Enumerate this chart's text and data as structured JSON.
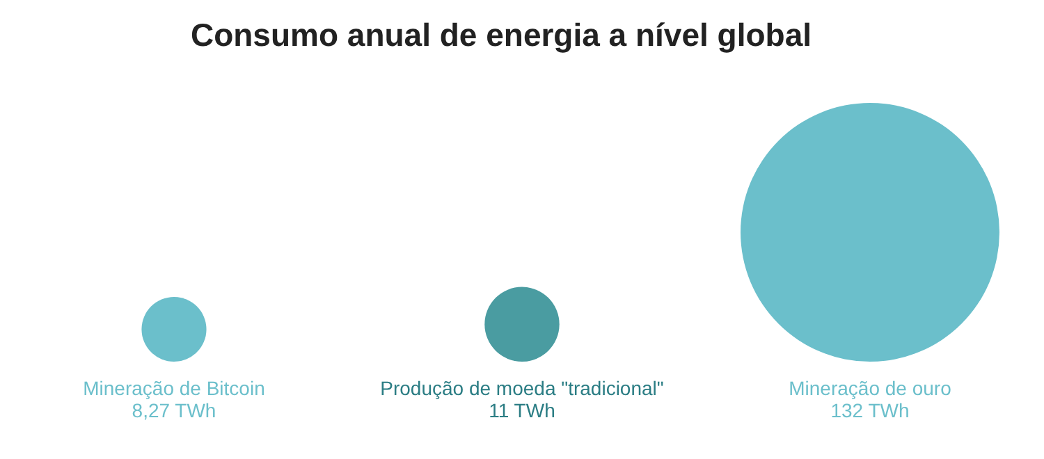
{
  "chart_data": {
    "type": "other",
    "title": "Consumo anual de energia a nível global",
    "categories": [
      "Mineração de Bitcoin",
      "Produção de moeda \"tradicional\"",
      "Mineração de ouro"
    ],
    "values": [
      8.27,
      11,
      132
    ],
    "value_labels": [
      "8,27 TWh",
      "11 TWh",
      "132 TWh"
    ],
    "colors": [
      "#6bbfcb",
      "#4a9ca1",
      "#6bbfcb"
    ],
    "legend": false
  }
}
